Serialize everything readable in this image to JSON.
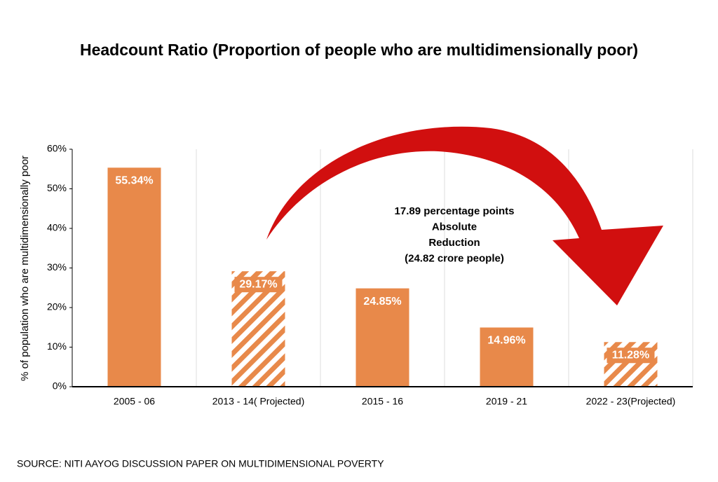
{
  "chart_data": {
    "type": "bar",
    "title": "Headcount Ratio (Proportion of people who are multidimensionally poor)",
    "y_label": "% of population who are multidimensionally poor",
    "categories": [
      "2005 - 06",
      "2013 - 14( Projected)",
      "2015 - 16",
      "2019 - 21",
      "2022 - 23(Projected)"
    ],
    "values": [
      55.34,
      29.17,
      24.85,
      14.96,
      11.28
    ],
    "value_labels": [
      "55.34%",
      "29.17%",
      "24.85%",
      "14.96%",
      "11.28%"
    ],
    "hatched": [
      false,
      true,
      false,
      false,
      true
    ],
    "color": "#e8894a",
    "ylim": [
      0,
      60
    ],
    "yticks": [
      {
        "value": 0,
        "label": "0%"
      },
      {
        "value": 10,
        "label": "10%"
      },
      {
        "value": 20,
        "label": "20%"
      },
      {
        "value": 30,
        "label": "30%"
      },
      {
        "value": 40,
        "label": "40%"
      },
      {
        "value": 50,
        "label": "50%"
      },
      {
        "value": 60,
        "label": "60%"
      }
    ],
    "grid": true,
    "annotation": [
      "17.89 percentage points",
      "Absolute",
      "Reduction",
      "(24.82 crore people)"
    ],
    "source": "SOURCE: NITI AAYOG DISCUSSION PAPER ON MULTIDIMENSIONAL POVERTY"
  }
}
